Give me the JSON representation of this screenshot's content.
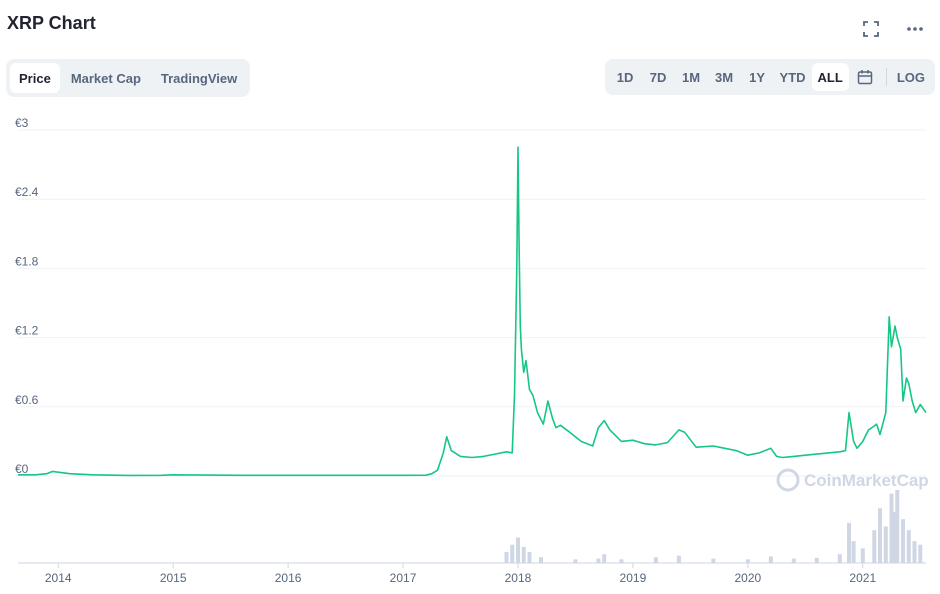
{
  "header": {
    "title": "XRP Chart",
    "fullscreen_icon": "expand-icon",
    "more_icon": "more-horizontal-icon"
  },
  "tabs": [
    {
      "label": "Price",
      "active": true
    },
    {
      "label": "Market Cap",
      "active": false
    },
    {
      "label": "TradingView",
      "active": false
    }
  ],
  "ranges": [
    {
      "label": "1D",
      "active": false
    },
    {
      "label": "7D",
      "active": false
    },
    {
      "label": "1M",
      "active": false
    },
    {
      "label": "3M",
      "active": false
    },
    {
      "label": "1Y",
      "active": false
    },
    {
      "label": "YTD",
      "active": false
    },
    {
      "label": "ALL",
      "active": true
    }
  ],
  "calendar_icon": "calendar-icon",
  "log_label": "LOG",
  "watermark": "CoinMarketCap",
  "colors": {
    "line": "#16c784",
    "volume": "#cfd6e4",
    "grid": "#eff2f5",
    "axis_text": "#58667e"
  },
  "chart_data": {
    "type": "line",
    "title": "",
    "xlabel": "",
    "ylabel": "",
    "ylim": [
      0,
      3
    ],
    "xlim": [
      2013.65,
      2021.55
    ],
    "y_ticks": [
      0,
      0.6,
      1.2,
      1.8,
      2.4,
      3
    ],
    "y_tick_labels": [
      "€0",
      "€0.6",
      "€1.2",
      "€1.8",
      "€2.4",
      "€3"
    ],
    "x_ticks": [
      2014,
      2015,
      2016,
      2017,
      2018,
      2019,
      2020,
      2021
    ],
    "x_tick_labels": [
      "2014",
      "2015",
      "2016",
      "2017",
      "2018",
      "2019",
      "2020",
      "2021"
    ],
    "series": [
      {
        "x": [
          2013.65,
          2013.8,
          2013.9,
          2013.95,
          2014.1,
          2014.3,
          2014.6,
          2014.9,
          2015.0,
          2015.3,
          2015.6,
          2016.0,
          2016.5,
          2017.0,
          2017.2,
          2017.25,
          2017.3,
          2017.35,
          2017.38,
          2017.42,
          2017.5,
          2017.6,
          2017.7,
          2017.8,
          2017.9,
          2017.95,
          2017.97,
          2017.99,
          2018.0,
          2018.01,
          2018.02,
          2018.03,
          2018.05,
          2018.07,
          2018.1,
          2018.13,
          2018.17,
          2018.22,
          2018.26,
          2018.3,
          2018.33,
          2018.37,
          2018.45,
          2018.55,
          2018.65,
          2018.7,
          2018.75,
          2018.8,
          2018.9,
          2019.0,
          2019.1,
          2019.2,
          2019.3,
          2019.4,
          2019.45,
          2019.55,
          2019.7,
          2019.8,
          2019.9,
          2020.0,
          2020.1,
          2020.2,
          2020.25,
          2020.3,
          2020.4,
          2020.5,
          2020.6,
          2020.7,
          2020.8,
          2020.85,
          2020.88,
          2020.92,
          2020.95,
          2021.0,
          2021.05,
          2021.08,
          2021.12,
          2021.15,
          2021.2,
          2021.23,
          2021.25,
          2021.28,
          2021.3,
          2021.33,
          2021.35,
          2021.38,
          2021.4,
          2021.43,
          2021.46,
          2021.5,
          2021.55
        ],
        "y": [
          0.01,
          0.01,
          0.02,
          0.04,
          0.02,
          0.01,
          0.005,
          0.006,
          0.01,
          0.008,
          0.006,
          0.006,
          0.006,
          0.006,
          0.007,
          0.02,
          0.05,
          0.2,
          0.34,
          0.22,
          0.17,
          0.16,
          0.17,
          0.19,
          0.21,
          0.2,
          0.7,
          1.8,
          2.85,
          2.0,
          1.3,
          1.1,
          0.9,
          1.0,
          0.75,
          0.7,
          0.55,
          0.45,
          0.65,
          0.5,
          0.42,
          0.44,
          0.38,
          0.3,
          0.26,
          0.42,
          0.48,
          0.4,
          0.3,
          0.31,
          0.28,
          0.27,
          0.29,
          0.4,
          0.38,
          0.25,
          0.26,
          0.24,
          0.22,
          0.18,
          0.2,
          0.24,
          0.17,
          0.16,
          0.17,
          0.18,
          0.19,
          0.2,
          0.21,
          0.22,
          0.55,
          0.3,
          0.24,
          0.3,
          0.4,
          0.42,
          0.45,
          0.36,
          0.55,
          1.38,
          1.12,
          1.3,
          1.2,
          1.1,
          0.65,
          0.85,
          0.8,
          0.65,
          0.55,
          0.62,
          0.55
        ]
      }
    ],
    "volume": {
      "x": [
        2017.9,
        2017.95,
        2018.0,
        2018.05,
        2018.1,
        2018.2,
        2018.5,
        2018.7,
        2018.75,
        2018.9,
        2019.2,
        2019.4,
        2019.7,
        2020.0,
        2020.2,
        2020.4,
        2020.6,
        2020.8,
        2020.88,
        2020.92,
        2021.0,
        2021.1,
        2021.15,
        2021.2,
        2021.25,
        2021.28,
        2021.3,
        2021.35,
        2021.4,
        2021.45,
        2021.5
      ],
      "values": [
        0.15,
        0.25,
        0.35,
        0.22,
        0.15,
        0.08,
        0.05,
        0.06,
        0.12,
        0.05,
        0.08,
        0.1,
        0.06,
        0.05,
        0.09,
        0.06,
        0.07,
        0.12,
        0.55,
        0.3,
        0.2,
        0.45,
        0.75,
        0.5,
        0.95,
        0.7,
        1.0,
        0.6,
        0.45,
        0.3,
        0.25
      ]
    }
  }
}
